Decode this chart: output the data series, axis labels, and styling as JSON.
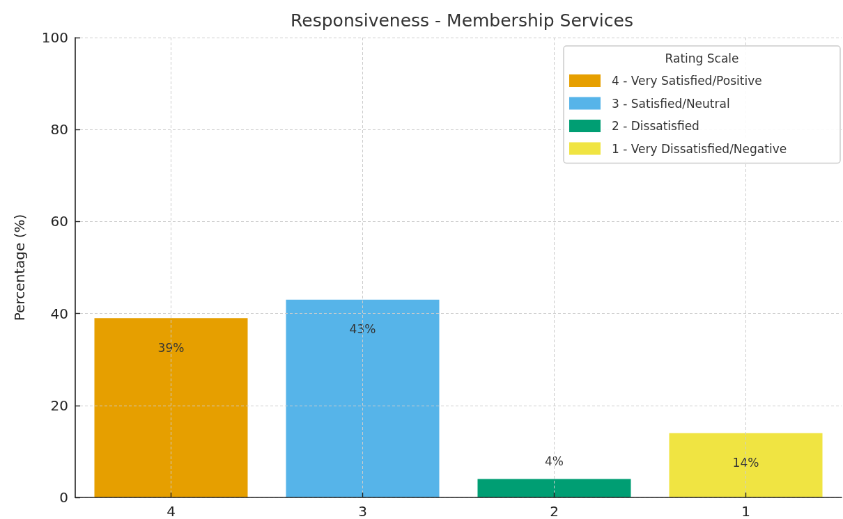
{
  "chart_data": {
    "type": "bar",
    "title": "Responsiveness - Membership Services",
    "ylabel": "Percentage (%)",
    "legend_title": "Rating Scale",
    "categories": [
      "4",
      "3",
      "2",
      "1"
    ],
    "series": [
      {
        "name": "4 - Very Satisfied/Positive",
        "color": "#e69f00",
        "values": [
          39,
          null,
          null,
          null
        ],
        "value_labels": [
          "39%",
          null,
          null,
          null
        ]
      },
      {
        "name": "3 - Satisfied/Neutral",
        "color": "#56b4e9",
        "values": [
          null,
          43,
          null,
          null
        ],
        "value_labels": [
          null,
          "43%",
          null,
          null
        ]
      },
      {
        "name": "2 - Dissatisfied",
        "color": "#009e73",
        "values": [
          null,
          null,
          4,
          null
        ],
        "value_labels": [
          null,
          null,
          "4%",
          null
        ]
      },
      {
        "name": "1 - Very Dissatisfied/Negative",
        "color": "#f0e442",
        "values": [
          null,
          null,
          null,
          14
        ],
        "value_labels": [
          null,
          null,
          null,
          "14%"
        ]
      }
    ],
    "ylim": [
      0,
      100
    ],
    "yticks": [
      0,
      20,
      40,
      60,
      80,
      100
    ],
    "grid": true,
    "legend": "top right"
  }
}
